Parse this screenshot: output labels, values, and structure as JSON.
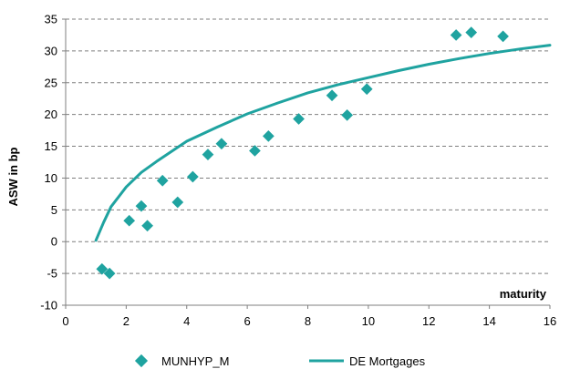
{
  "chart_data": {
    "type": "scatter",
    "title": "",
    "xlabel": "maturity",
    "ylabel": "ASW in bp",
    "xlim": [
      0,
      16
    ],
    "ylim": [
      -10,
      35
    ],
    "x_ticks": [
      0,
      2,
      4,
      6,
      8,
      10,
      12,
      14,
      16
    ],
    "y_ticks": [
      -10,
      -5,
      0,
      5,
      10,
      15,
      20,
      25,
      30,
      35
    ],
    "grid": true,
    "legend_position": "bottom",
    "colors": {
      "series": "#1fa3a0",
      "grid": "#7f7f7f"
    },
    "series": [
      {
        "name": "MUNHYP_M",
        "type": "scatter",
        "marker": "diamond",
        "x": [
          1.2,
          1.45,
          2.1,
          2.5,
          2.7,
          3.2,
          3.7,
          4.2,
          4.7,
          5.15,
          6.25,
          6.7,
          7.7,
          8.8,
          9.3,
          9.95,
          12.9,
          13.4,
          14.45
        ],
        "y": [
          -4.3,
          -5.0,
          3.3,
          5.6,
          2.5,
          9.6,
          6.2,
          10.2,
          13.7,
          15.4,
          14.3,
          16.6,
          19.3,
          23.0,
          19.9,
          24.0,
          32.5,
          32.9,
          32.3
        ]
      },
      {
        "name": "DE Mortgages",
        "type": "line",
        "x": [
          1.0,
          1.25,
          1.5,
          2.0,
          2.5,
          3.0,
          4.0,
          5.0,
          6.0,
          7.0,
          8.0,
          9.0,
          10.0,
          11.0,
          12.0,
          13.0,
          14.0,
          15.0,
          16.0
        ],
        "y": [
          0.2,
          3.0,
          5.5,
          8.6,
          10.9,
          12.6,
          15.8,
          18.0,
          20.1,
          21.8,
          23.4,
          24.7,
          25.8,
          26.9,
          27.9,
          28.8,
          29.6,
          30.3,
          30.9
        ]
      }
    ]
  }
}
